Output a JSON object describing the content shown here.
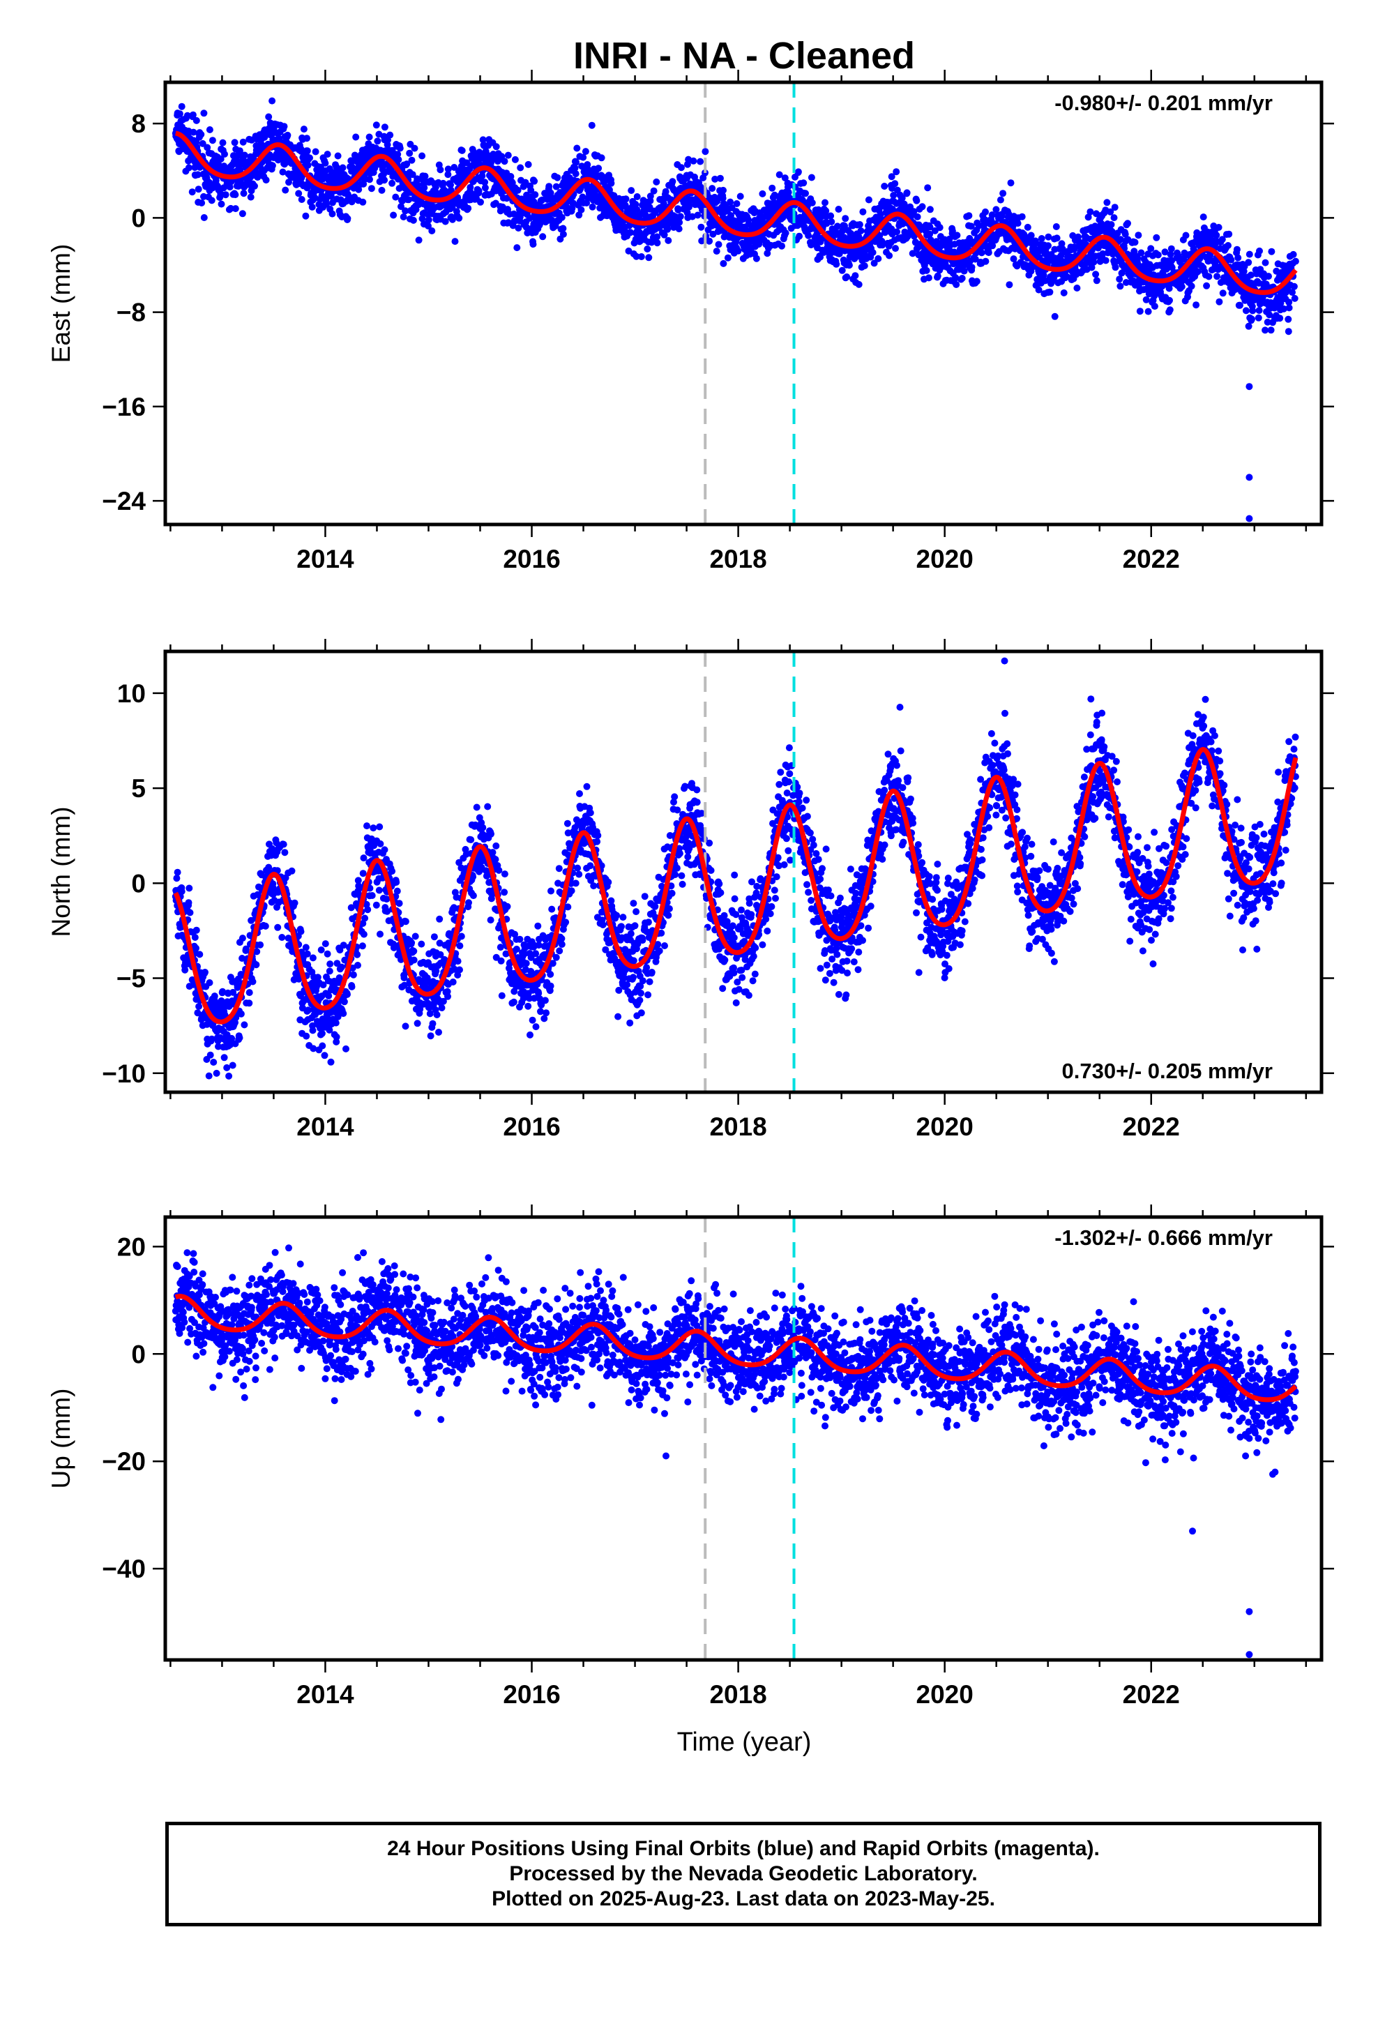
{
  "chart_data": {
    "title": "INRI  - NA - Cleaned",
    "xlabel": "Time (year)",
    "x_tick_labels": [
      "2014",
      "2016",
      "2018",
      "2020",
      "2022"
    ],
    "x_tick_values": [
      2014,
      2016,
      2018,
      2020,
      2022
    ],
    "xlim": [
      2012.45,
      2023.65
    ],
    "date_range": [
      2012.55,
      2023.4
    ],
    "vertical_lines": [
      {
        "x": 2017.68,
        "color": "#bbbbbb",
        "style": "dashed"
      },
      {
        "x": 2018.54,
        "color": "#00e0e0",
        "style": "dashed"
      }
    ],
    "scatter_color": "#0000ff",
    "fit_color": "#ff0000",
    "panels": [
      {
        "type": "scatter",
        "ylabel": "East (mm)",
        "ylim": [
          -26,
          11.5
        ],
        "y_tick_labels": [
          "8",
          "0",
          "−8",
          "−16",
          "−24"
        ],
        "y_tick_values": [
          8,
          0,
          -8,
          -16,
          -24
        ],
        "rate_label": "-0.980+/- 0.201 mm/yr",
        "rate_position": "top-right",
        "model": {
          "intercept_2018": 0.0,
          "slope_mm_per_yr": -0.98,
          "annual_amplitude": 1.6,
          "annual_phase_yr": 0.55,
          "extra_trend": -0.05,
          "scatter_sd": 1.3
        },
        "outliers": [
          [
            2022.95,
            -14.3
          ],
          [
            2022.95,
            -22
          ],
          [
            2022.95,
            -25.5
          ]
        ]
      },
      {
        "type": "scatter",
        "ylabel": "North (mm)",
        "ylim": [
          -11,
          12.2
        ],
        "y_tick_labels": [
          "10",
          "5",
          "0",
          "−5",
          "−10"
        ],
        "y_tick_values": [
          10,
          5,
          0,
          -5,
          -10
        ],
        "rate_label": "0.730+/- 0.205 mm/yr",
        "rate_position": "bottom-right",
        "model": {
          "intercept_2018": -0.5,
          "slope_mm_per_yr": 0.73,
          "annual_amplitude": 3.7,
          "annual_phase_yr": 0.5,
          "extra_trend": 0.0,
          "scatter_sd": 1.2
        },
        "outliers": [
          [
            2019.75,
            -4.7
          ],
          [
            2020.58,
            11.7
          ]
        ]
      },
      {
        "type": "scatter",
        "ylabel": "Up (mm)",
        "ylim": [
          -57,
          25.5
        ],
        "y_tick_labels": [
          "20",
          "0",
          "−20",
          "−40"
        ],
        "y_tick_values": [
          20,
          0,
          -20,
          -40
        ],
        "rate_label": "-1.302+/- 0.666 mm/yr",
        "rate_position": "top-right",
        "model": {
          "intercept_2018": 0.5,
          "slope_mm_per_yr": -1.3,
          "annual_amplitude": 2.8,
          "annual_phase_yr": 0.6,
          "extra_trend": 0.0,
          "scatter_sd": 4.2
        },
        "outliers": [
          [
            2022.4,
            -33
          ],
          [
            2022.95,
            -48
          ],
          [
            2022.95,
            -56
          ],
          [
            2023.2,
            -22
          ],
          [
            2017.3,
            -19
          ]
        ]
      }
    ]
  },
  "footer": {
    "line1": "24 Hour Positions Using Final Orbits (blue) and Rapid Orbits (magenta).",
    "line2": "Processed by the Nevada Geodetic Laboratory.",
    "line3": "Plotted on 2025-Aug-23. Last data on 2023-May-25."
  }
}
